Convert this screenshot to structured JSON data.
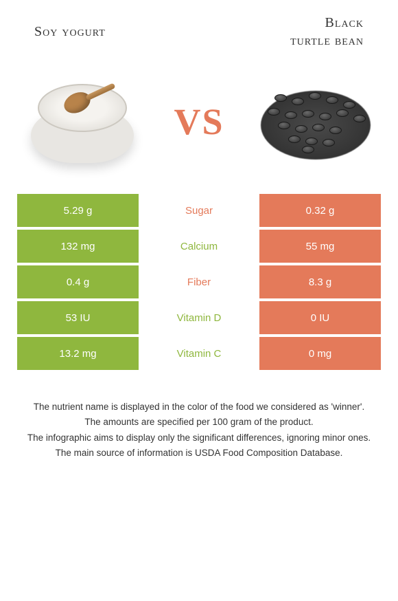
{
  "leftFood": {
    "title": "Soy yogurt",
    "color": "#8fb73e"
  },
  "rightFood": {
    "title": "Black\nturtle bean",
    "color": "#e47a5a"
  },
  "vs": "VS",
  "rows": [
    {
      "left": "5.29 g",
      "label": "Sugar",
      "right": "0.32 g",
      "winner": "right"
    },
    {
      "left": "132 mg",
      "label": "Calcium",
      "right": "55 mg",
      "winner": "left"
    },
    {
      "left": "0.4 g",
      "label": "Fiber",
      "right": "8.3 g",
      "winner": "right"
    },
    {
      "left": "53 IU",
      "label": "Vitamin D",
      "right": "0 IU",
      "winner": "left"
    },
    {
      "left": "13.2 mg",
      "label": "Vitamin C",
      "right": "0 mg",
      "winner": "left"
    }
  ],
  "footer": [
    "The nutrient name is displayed in the color of the food we considered as 'winner'.",
    "The amounts are specified per 100 gram of the product.",
    "The infographic aims to display only the significant differences, ignoring minor ones.",
    "The main source of information is USDA Food Composition Database."
  ],
  "colors": {
    "left": "#8fb73e",
    "right": "#e47a5a",
    "bg": "#ffffff"
  }
}
